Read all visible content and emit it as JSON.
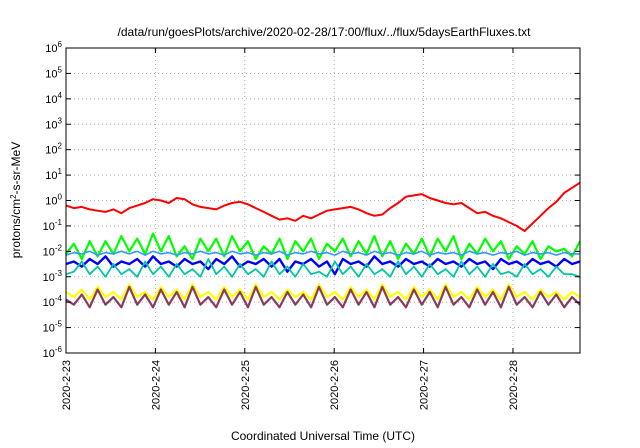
{
  "chart_data": {
    "type": "line",
    "title": "/data/run/goesPlots/archive/2020-02-28/17:00/flux/../flux/5daysEarthFluxes.txt",
    "xlabel": "Coordinated Universal Time (UTC)",
    "ylabel": {
      "prefix": "protons/cm",
      "sup": "2",
      "suffix": "-s-sr-MeV"
    },
    "xlim": [
      0,
      5.75
    ],
    "x_unit": "days after 2020-2-23 00:00 UTC",
    "y_scale": "log",
    "ylim_exp": [
      -6,
      6
    ],
    "x_ticks": [
      {
        "x": 0,
        "label": "2020-2-23"
      },
      {
        "x": 1,
        "label": "2020-2-24"
      },
      {
        "x": 2,
        "label": "2020-2-25"
      },
      {
        "x": 3,
        "label": "2020-2-26"
      },
      {
        "x": 4,
        "label": "2020-2-27"
      },
      {
        "x": 5,
        "label": "2020-2-28"
      }
    ],
    "y_ticks": [
      {
        "exp": -6,
        "base": "10",
        "sup": "-6"
      },
      {
        "exp": -5,
        "base": "10",
        "sup": "-5"
      },
      {
        "exp": -4,
        "base": "10",
        "sup": "-4"
      },
      {
        "exp": -3,
        "base": "10",
        "sup": "-3"
      },
      {
        "exp": -2,
        "base": "10",
        "sup": "-2"
      },
      {
        "exp": -1,
        "base": "10",
        "sup": "-1"
      },
      {
        "exp": 0,
        "base": "10",
        "sup": "0"
      },
      {
        "exp": 1,
        "base": "10",
        "sup": "1"
      },
      {
        "exp": 2,
        "base": "10",
        "sup": "2"
      },
      {
        "exp": 3,
        "base": "10",
        "sup": "3"
      },
      {
        "exp": 4,
        "base": "10",
        "sup": "4"
      },
      {
        "exp": 5,
        "base": "10",
        "sup": "5"
      },
      {
        "exp": 6,
        "base": "10",
        "sup": "6"
      }
    ],
    "grid": "dotted",
    "series": [
      {
        "color": "#ff0000",
        "width": 2,
        "log_values": [
          -0.2,
          -0.3,
          -0.25,
          -0.35,
          -0.4,
          -0.45,
          -0.35,
          -0.5,
          -0.3,
          -0.2,
          -0.1,
          0.05,
          0.0,
          -0.1,
          0.1,
          0.05,
          -0.15,
          -0.25,
          -0.3,
          -0.35,
          -0.2,
          -0.1,
          -0.05,
          -0.15,
          -0.3,
          -0.45,
          -0.6,
          -0.75,
          -0.7,
          -0.8,
          -0.6,
          -0.7,
          -0.55,
          -0.4,
          -0.35,
          -0.3,
          -0.25,
          -0.35,
          -0.5,
          -0.6,
          -0.55,
          -0.3,
          -0.1,
          0.15,
          0.2,
          0.25,
          0.1,
          0.0,
          -0.1,
          -0.15,
          -0.1,
          -0.3,
          -0.5,
          -0.45,
          -0.6,
          -0.7,
          -0.85,
          -1.0,
          -1.2,
          -0.9,
          -0.6,
          -0.3,
          -0.05,
          0.3,
          0.5,
          0.7
        ]
      },
      {
        "color": "#00ff00",
        "width": 2.2,
        "log_values": [
          -2.1,
          -1.7,
          -2.3,
          -1.6,
          -2.2,
          -1.6,
          -2.1,
          -1.4,
          -2.0,
          -1.5,
          -2.1,
          -1.3,
          -2.0,
          -1.4,
          -2.2,
          -1.8,
          -2.3,
          -1.5,
          -2.0,
          -1.5,
          -2.2,
          -1.4,
          -2.0,
          -1.6,
          -2.3,
          -1.8,
          -2.1,
          -1.5,
          -2.3,
          -1.6,
          -2.0,
          -1.5,
          -2.3,
          -1.7,
          -2.0,
          -1.5,
          -2.2,
          -1.6,
          -2.1,
          -1.4,
          -2.2,
          -1.6,
          -2.3,
          -1.7,
          -2.1,
          -1.5,
          -2.2,
          -1.5,
          -2.0,
          -1.4,
          -2.3,
          -1.7,
          -2.1,
          -1.5,
          -2.0,
          -1.6,
          -2.3,
          -1.8,
          -2.1,
          -1.6,
          -2.3,
          -1.8,
          -2.0,
          -1.9,
          -2.2,
          -1.6
        ]
      },
      {
        "color": "#3399ff",
        "width": 1.6,
        "log_values": [
          -2.15,
          -2.05,
          -2.1,
          -2.0,
          -2.15,
          -2.05,
          -2.1,
          -2.0,
          -2.1,
          -2.0,
          -2.15,
          -2.0,
          -2.1,
          -2.05,
          -2.15,
          -2.05,
          -2.1,
          -2.0,
          -2.1,
          -2.05,
          -2.15,
          -2.0,
          -2.1,
          -2.05,
          -2.15,
          -2.05,
          -2.1,
          -2.0,
          -2.15,
          -2.05,
          -2.1,
          -2.0,
          -2.1,
          -2.05,
          -2.15,
          -2.0,
          -2.1,
          -2.05,
          -2.15,
          -2.0,
          -2.1,
          -2.05,
          -2.15,
          -2.05,
          -2.1,
          -2.0,
          -2.15,
          -2.05,
          -2.1,
          -2.05,
          -2.15,
          -2.0,
          -2.1,
          -2.05,
          -2.15,
          -2.05,
          -2.1,
          -2.0,
          -2.15,
          -2.05,
          -2.1,
          -2.05,
          -2.15,
          -2.05,
          -2.1,
          -2.1
        ]
      },
      {
        "color": "#0000ff",
        "width": 2.4,
        "log_values": [
          -2.5,
          -2.4,
          -2.6,
          -2.3,
          -2.5,
          -2.2,
          -2.6,
          -2.4,
          -2.5,
          -2.3,
          -2.6,
          -2.2,
          -2.5,
          -2.4,
          -2.6,
          -2.3,
          -2.5,
          -2.4,
          -2.7,
          -2.3,
          -2.5,
          -2.2,
          -2.6,
          -2.4,
          -2.5,
          -2.3,
          -2.6,
          -2.3,
          -2.8,
          -2.4,
          -2.5,
          -2.3,
          -2.6,
          -2.4,
          -2.9,
          -2.3,
          -2.5,
          -2.4,
          -2.6,
          -2.2,
          -2.5,
          -2.4,
          -2.6,
          -2.3,
          -2.5,
          -2.4,
          -2.6,
          -2.3,
          -2.5,
          -2.4,
          -2.6,
          -2.3,
          -2.5,
          -2.4,
          -2.7,
          -2.3,
          -2.5,
          -2.4,
          -2.6,
          -2.3,
          -2.5,
          -2.4,
          -2.6,
          -2.3,
          -2.5,
          -2.4
        ]
      },
      {
        "color": "#00c8a0",
        "width": 1.8,
        "log_values": [
          -2.9,
          -2.8,
          -2.4,
          -2.9,
          -2.6,
          -3.0,
          -2.5,
          -2.9,
          -2.7,
          -3.0,
          -2.4,
          -2.9,
          -2.6,
          -3.0,
          -2.5,
          -2.9,
          -2.7,
          -3.0,
          -2.3,
          -2.9,
          -2.6,
          -3.0,
          -2.5,
          -2.9,
          -2.7,
          -3.0,
          -2.4,
          -2.9,
          -2.6,
          -3.0,
          -2.5,
          -2.9,
          -2.8,
          -3.0,
          -2.4,
          -2.9,
          -2.6,
          -3.0,
          -2.5,
          -2.9,
          -2.7,
          -3.0,
          -2.4,
          -2.9,
          -2.6,
          -3.0,
          -2.5,
          -2.9,
          -2.7,
          -3.0,
          -2.4,
          -2.9,
          -2.6,
          -3.0,
          -2.5,
          -2.9,
          -2.8,
          -3.0,
          -2.5,
          -2.9,
          -2.7,
          -3.0,
          -2.6,
          -2.9,
          -2.9,
          -3.0
        ]
      },
      {
        "color": "#ffff00",
        "width": 2.2,
        "log_values": [
          -3.6,
          -3.8,
          -3.5,
          -3.9,
          -3.4,
          -3.8,
          -3.6,
          -3.9,
          -3.3,
          -3.8,
          -3.6,
          -3.9,
          -3.4,
          -3.8,
          -3.5,
          -3.9,
          -3.3,
          -3.8,
          -3.6,
          -3.9,
          -3.4,
          -3.8,
          -3.5,
          -3.9,
          -3.3,
          -3.8,
          -3.6,
          -3.9,
          -3.5,
          -3.8,
          -3.6,
          -3.9,
          -3.3,
          -3.8,
          -3.6,
          -3.9,
          -3.4,
          -3.8,
          -3.5,
          -3.9,
          -3.3,
          -3.8,
          -3.6,
          -3.9,
          -3.4,
          -3.8,
          -3.5,
          -3.9,
          -3.3,
          -3.8,
          -3.6,
          -3.9,
          -3.4,
          -3.8,
          -3.5,
          -3.9,
          -3.3,
          -3.8,
          -3.6,
          -3.9,
          -3.5,
          -3.8,
          -3.6,
          -3.9,
          -3.6,
          -3.8
        ]
      },
      {
        "color": "#8b3a62",
        "width": 2.2,
        "log_values": [
          -3.9,
          -4.1,
          -3.7,
          -4.2,
          -3.5,
          -4.1,
          -3.8,
          -4.2,
          -3.4,
          -4.1,
          -3.7,
          -4.2,
          -3.5,
          -4.1,
          -3.6,
          -4.2,
          -3.4,
          -4.1,
          -3.8,
          -4.2,
          -3.5,
          -4.1,
          -3.6,
          -4.2,
          -3.4,
          -4.1,
          -3.8,
          -4.2,
          -3.6,
          -4.1,
          -3.7,
          -4.2,
          -3.4,
          -4.1,
          -3.8,
          -4.2,
          -3.5,
          -4.1,
          -3.6,
          -4.2,
          -3.4,
          -4.1,
          -3.8,
          -4.2,
          -3.5,
          -4.1,
          -3.6,
          -4.2,
          -3.4,
          -4.1,
          -3.8,
          -4.2,
          -3.5,
          -4.1,
          -3.6,
          -4.2,
          -3.4,
          -4.1,
          -3.8,
          -4.2,
          -3.6,
          -4.1,
          -3.7,
          -4.2,
          -3.8,
          -4.1
        ]
      }
    ]
  }
}
